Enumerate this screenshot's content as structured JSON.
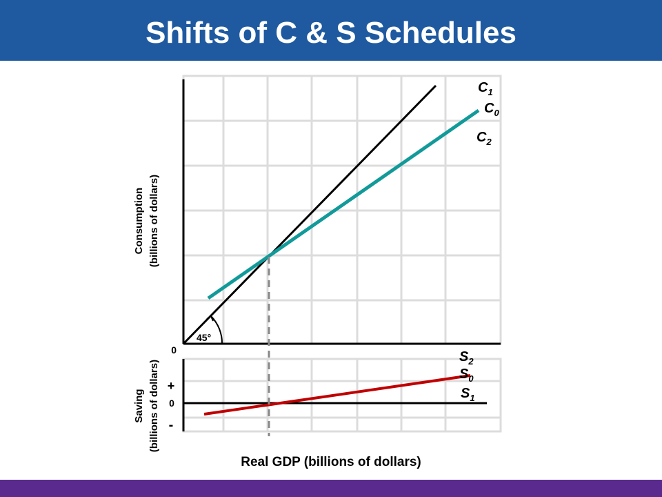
{
  "header": {
    "title": "Shifts of C & S Schedules"
  },
  "top_panel": {
    "axis_label": [
      "Consumption",
      "(billions of dollars)"
    ],
    "origin": "0",
    "angle": "45°",
    "curves": [
      {
        "base": "C",
        "sub": "1"
      },
      {
        "base": "C",
        "sub": "0"
      },
      {
        "base": "C",
        "sub": "2"
      }
    ]
  },
  "bottom_panel": {
    "axis_label": [
      "Saving",
      "(billions of dollars)"
    ],
    "signs": [
      "+",
      "0",
      "-"
    ],
    "curves": [
      {
        "base": "S",
        "sub": "2"
      },
      {
        "base": "S",
        "sub": "0"
      },
      {
        "base": "S",
        "sub": "1"
      }
    ]
  },
  "x_axis_label": "Real GDP (billions of dollars)"
}
